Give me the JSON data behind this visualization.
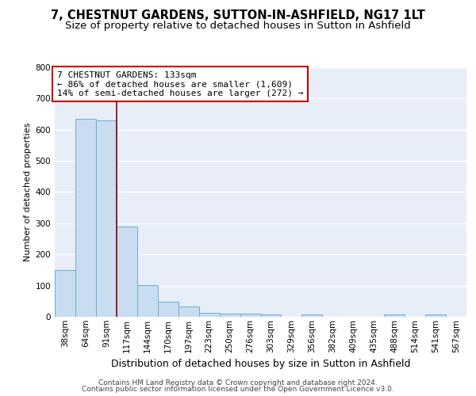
{
  "title1": "7, CHESTNUT GARDENS, SUTTON-IN-ASHFIELD, NG17 1LT",
  "title2": "Size of property relative to detached houses in Sutton in Ashfield",
  "xlabel": "Distribution of detached houses by size in Sutton in Ashfield",
  "ylabel": "Number of detached properties",
  "bar_labels": [
    "38sqm",
    "64sqm",
    "91sqm",
    "117sqm",
    "144sqm",
    "170sqm",
    "197sqm",
    "223sqm",
    "250sqm",
    "276sqm",
    "303sqm",
    "329sqm",
    "356sqm",
    "382sqm",
    "409sqm",
    "435sqm",
    "488sqm",
    "514sqm",
    "541sqm",
    "567sqm"
  ],
  "bar_values": [
    150,
    635,
    630,
    290,
    102,
    47,
    32,
    12,
    10,
    10,
    8,
    0,
    8,
    0,
    0,
    0,
    7,
    0,
    8,
    0
  ],
  "bar_color": "#c9dcf0",
  "bar_edge_color": "#6aaed6",
  "bg_color": "#e8eef8",
  "grid_color": "#ffffff",
  "annotation_box_edgecolor": "#cc0000",
  "annotation_text_line1": "7 CHESTNUT GARDENS: 133sqm",
  "annotation_text_line2": "← 86% of detached houses are smaller (1,609)",
  "annotation_text_line3": "14% of semi-detached houses are larger (272) →",
  "marker_line_color": "#8b0000",
  "ylim": [
    0,
    800
  ],
  "yticks": [
    0,
    100,
    200,
    300,
    400,
    500,
    600,
    700,
    800
  ],
  "footer_line1": "Contains HM Land Registry data © Crown copyright and database right 2024.",
  "footer_line2": "Contains public sector information licensed under the Open Government Licence v3.0.",
  "title1_fontsize": 10.5,
  "title2_fontsize": 9.5,
  "annotation_fontsize": 8,
  "tick_fontsize": 7.5,
  "ylabel_fontsize": 8,
  "xlabel_fontsize": 9
}
